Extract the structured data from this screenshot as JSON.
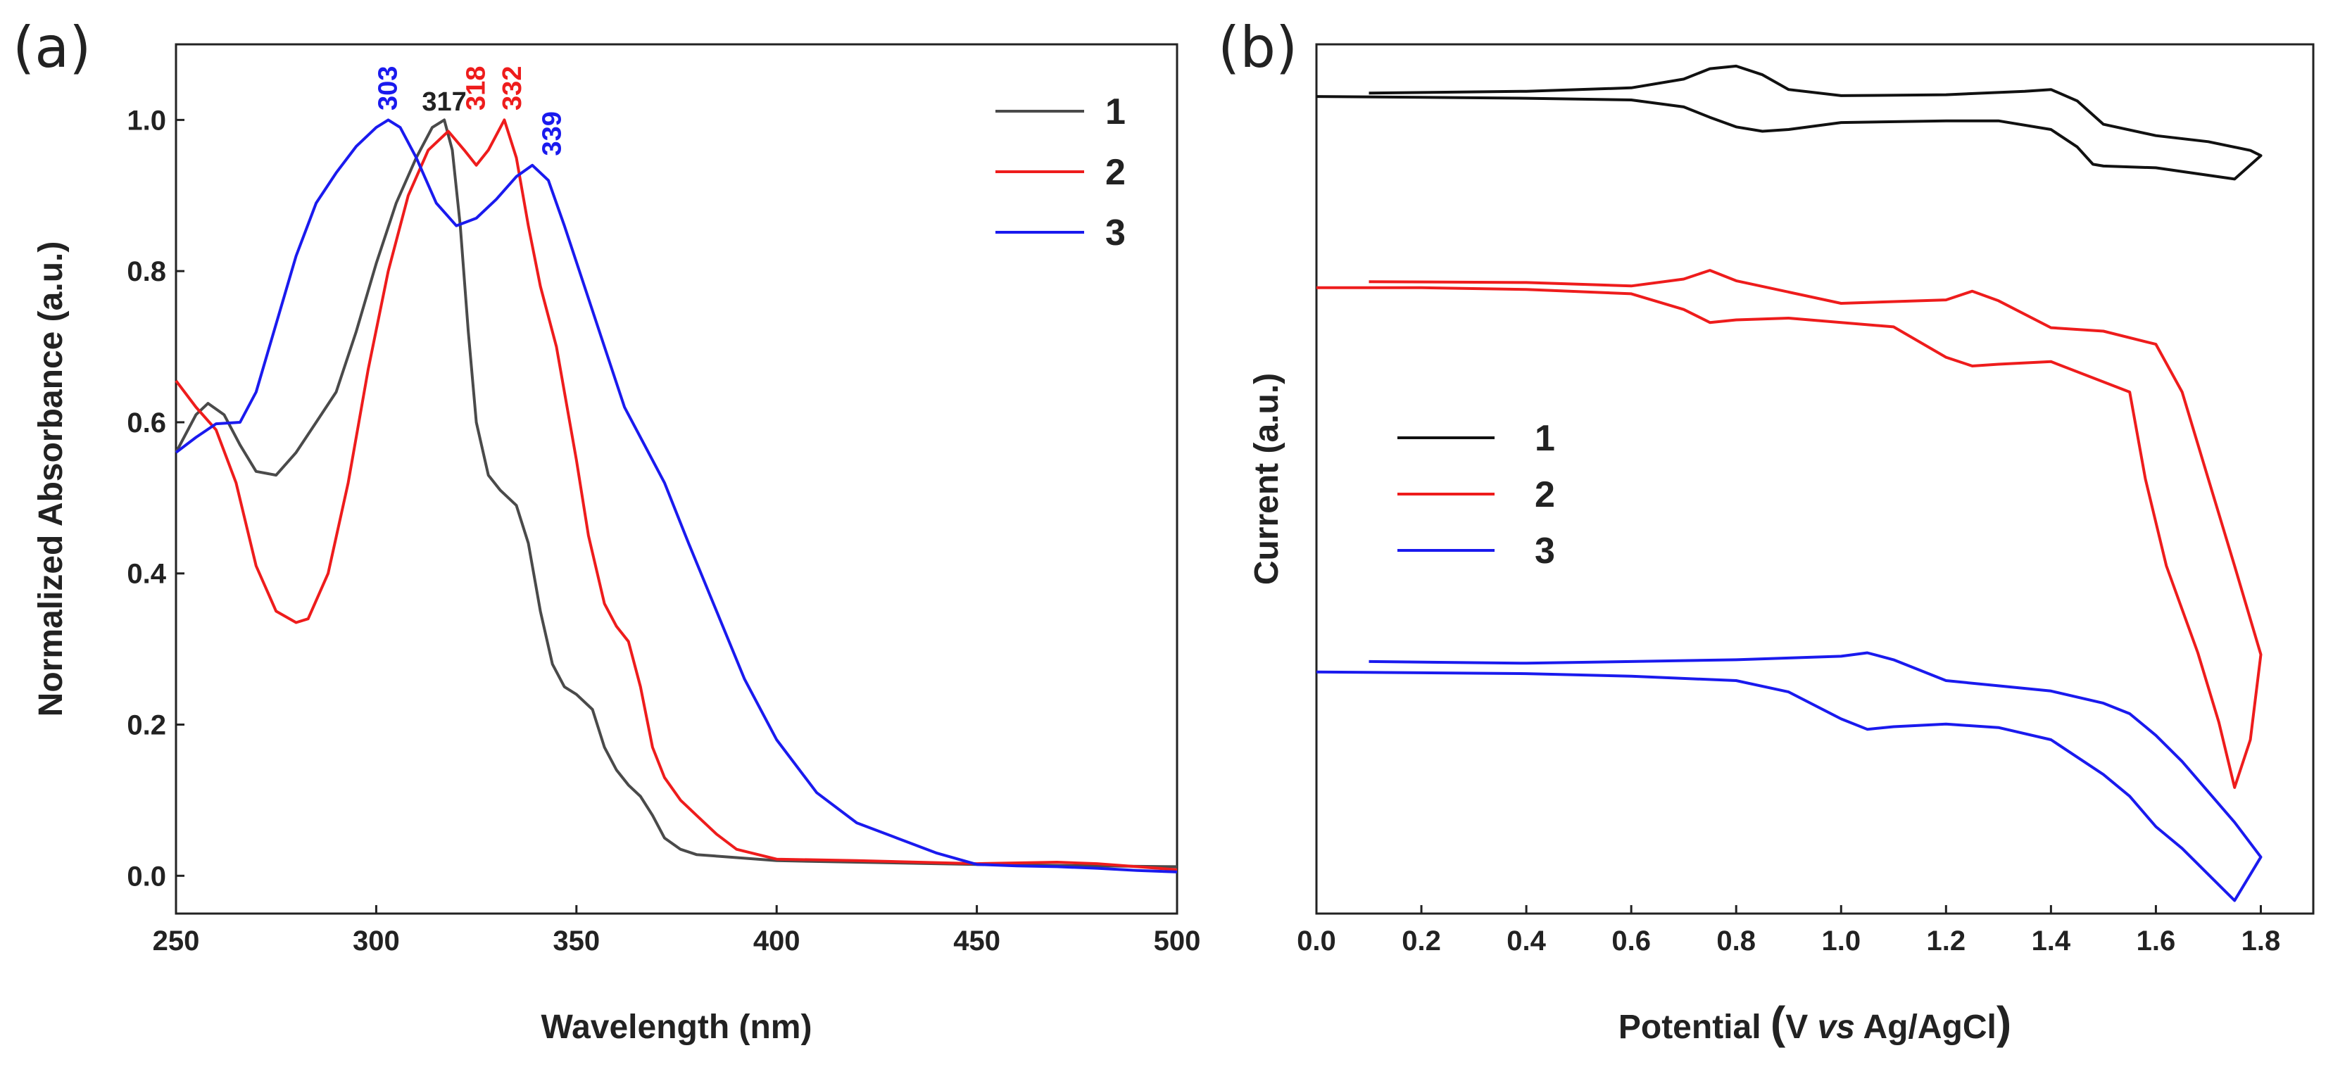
{
  "chart_data": [
    {
      "type": "line",
      "panel_label": "(a)",
      "title": "",
      "xlabel": "Wavelength (nm)",
      "ylabel": "Normalized Absorbance (a.u.)",
      "xlim": [
        250,
        500
      ],
      "ylim": [
        -0.05,
        1.1
      ],
      "xticks": [
        250,
        300,
        350,
        400,
        450,
        500
      ],
      "yticks": [
        0.0,
        0.2,
        0.4,
        0.6,
        0.8,
        1.0
      ],
      "xtick_labels": [
        "250",
        "300",
        "350",
        "400",
        "450",
        "500"
      ],
      "ytick_labels": [
        "0.0",
        "0.2",
        "0.4",
        "0.6",
        "0.8",
        "1.0"
      ],
      "legend_position": "top-right",
      "series": [
        {
          "name": "1",
          "color": "#4a4a4a",
          "x": [
            250,
            255,
            258,
            262,
            266,
            270,
            275,
            280,
            285,
            290,
            295,
            300,
            305,
            310,
            314,
            317,
            319,
            321,
            323,
            325,
            328,
            331,
            335,
            338,
            341,
            344,
            347,
            350,
            354,
            357,
            360,
            363,
            366,
            369,
            372,
            376,
            380,
            390,
            400,
            420,
            450,
            480,
            500
          ],
          "y": [
            0.56,
            0.61,
            0.625,
            0.61,
            0.57,
            0.535,
            0.53,
            0.56,
            0.6,
            0.64,
            0.72,
            0.81,
            0.89,
            0.95,
            0.99,
            1.0,
            0.96,
            0.86,
            0.72,
            0.6,
            0.53,
            0.51,
            0.49,
            0.44,
            0.35,
            0.28,
            0.25,
            0.24,
            0.22,
            0.17,
            0.14,
            0.12,
            0.105,
            0.08,
            0.05,
            0.035,
            0.028,
            0.024,
            0.02,
            0.018,
            0.015,
            0.013,
            0.012
          ]
        },
        {
          "name": "2",
          "color": "#ee1c1c",
          "x": [
            250,
            255,
            260,
            265,
            270,
            275,
            280,
            283,
            288,
            293,
            298,
            303,
            308,
            313,
            318,
            322,
            325,
            328,
            332,
            335,
            338,
            341,
            345,
            350,
            353,
            357,
            360,
            363,
            366,
            369,
            372,
            376,
            380,
            385,
            390,
            400,
            420,
            450,
            470,
            480,
            490,
            500
          ],
          "y": [
            0.655,
            0.62,
            0.59,
            0.52,
            0.41,
            0.35,
            0.335,
            0.34,
            0.4,
            0.52,
            0.67,
            0.8,
            0.9,
            0.96,
            0.985,
            0.96,
            0.94,
            0.96,
            1.0,
            0.95,
            0.86,
            0.78,
            0.7,
            0.55,
            0.45,
            0.36,
            0.33,
            0.31,
            0.25,
            0.17,
            0.13,
            0.1,
            0.08,
            0.055,
            0.035,
            0.022,
            0.02,
            0.016,
            0.018,
            0.016,
            0.012,
            0.008
          ]
        },
        {
          "name": "3",
          "color": "#1a1aee",
          "x": [
            250,
            255,
            260,
            266,
            270,
            275,
            280,
            285,
            290,
            295,
            300,
            303,
            306,
            310,
            315,
            320,
            325,
            330,
            335,
            339,
            343,
            347,
            352,
            357,
            362,
            367,
            372,
            378,
            385,
            392,
            400,
            410,
            420,
            430,
            440,
            450,
            460,
            470,
            480,
            490,
            500
          ],
          "y": [
            0.56,
            0.58,
            0.598,
            0.6,
            0.64,
            0.73,
            0.82,
            0.89,
            0.93,
            0.965,
            0.99,
            1.0,
            0.99,
            0.95,
            0.89,
            0.86,
            0.87,
            0.895,
            0.925,
            0.94,
            0.92,
            0.86,
            0.78,
            0.7,
            0.62,
            0.57,
            0.52,
            0.44,
            0.35,
            0.26,
            0.18,
            0.11,
            0.07,
            0.05,
            0.03,
            0.015,
            0.013,
            0.012,
            0.01,
            0.007,
            0.005
          ]
        }
      ],
      "annotations": [
        {
          "text": "303",
          "x": 303,
          "y": 1.005,
          "color": "#1a1aee",
          "vertical": true
        },
        {
          "text": "317",
          "x": 317,
          "y": 1.005,
          "color": "#222222",
          "vertical": false
        },
        {
          "text": "318",
          "x": 325,
          "y": 1.005,
          "color": "#ee1c1c",
          "vertical": true
        },
        {
          "text": "332",
          "x": 334,
          "y": 1.005,
          "color": "#ee1c1c",
          "vertical": true
        },
        {
          "text": "339",
          "x": 344,
          "y": 0.945,
          "color": "#1a1aee",
          "vertical": true
        }
      ]
    },
    {
      "type": "line",
      "panel_label": "(b)",
      "title": "",
      "xlabel_parts": [
        "Potential ",
        "(",
        "V ",
        "vs",
        " Ag/AgCl",
        ")"
      ],
      "ylabel": "Current (a.u.)",
      "xlim": [
        0.0,
        1.9
      ],
      "ylim": [
        0,
        1
      ],
      "xticks": [
        0.0,
        0.2,
        0.4,
        0.6,
        0.8,
        1.0,
        1.2,
        1.4,
        1.6,
        1.8
      ],
      "xtick_labels": [
        "0.0",
        "0.2",
        "0.4",
        "0.6",
        "0.8",
        "1.0",
        "1.2",
        "1.4",
        "1.6",
        "1.8"
      ],
      "y_units": "arbitrary (no y tick labels)",
      "legend_position": "middle-left",
      "series": [
        {
          "name": "1",
          "color": "#111111",
          "x": [
            0.1,
            0.4,
            0.6,
            0.7,
            0.75,
            0.8,
            0.85,
            0.9,
            1.0,
            1.2,
            1.35,
            1.4,
            1.45,
            1.5,
            1.6,
            1.7,
            1.78,
            1.8,
            1.75,
            1.6,
            1.5,
            1.48,
            1.45,
            1.4,
            1.3,
            1.2,
            1.0,
            0.9,
            0.85,
            0.8,
            0.75,
            0.7,
            0.6,
            0.4,
            0.2,
            0.0
          ],
          "y": [
            0.944,
            0.946,
            0.95,
            0.96,
            0.972,
            0.975,
            0.965,
            0.948,
            0.941,
            0.942,
            0.946,
            0.948,
            0.935,
            0.908,
            0.895,
            0.888,
            0.878,
            0.872,
            0.845,
            0.858,
            0.86,
            0.862,
            0.882,
            0.902,
            0.912,
            0.912,
            0.91,
            0.902,
            0.9,
            0.905,
            0.916,
            0.928,
            0.936,
            0.938,
            0.939,
            0.94
          ]
        },
        {
          "name": "2",
          "color": "#ee1c1c",
          "x": [
            0.1,
            0.4,
            0.6,
            0.7,
            0.75,
            0.8,
            1.0,
            1.2,
            1.25,
            1.3,
            1.4,
            1.5,
            1.6,
            1.65,
            1.7,
            1.75,
            1.8,
            1.78,
            1.75,
            1.72,
            1.68,
            1.62,
            1.58,
            1.55,
            1.4,
            1.3,
            1.25,
            1.2,
            1.1,
            0.9,
            0.8,
            0.75,
            0.7,
            0.6,
            0.4,
            0.2,
            0.0
          ],
          "y": [
            0.727,
            0.726,
            0.722,
            0.73,
            0.74,
            0.728,
            0.702,
            0.706,
            0.716,
            0.705,
            0.674,
            0.67,
            0.655,
            0.6,
            0.5,
            0.4,
            0.298,
            0.2,
            0.145,
            0.22,
            0.3,
            0.4,
            0.5,
            0.6,
            0.635,
            0.632,
            0.63,
            0.64,
            0.675,
            0.685,
            0.683,
            0.68,
            0.695,
            0.713,
            0.718,
            0.72,
            0.72
          ]
        },
        {
          "name": "3",
          "color": "#1a1aee",
          "x": [
            0.1,
            0.4,
            0.6,
            0.8,
            0.9,
            1.0,
            1.05,
            1.1,
            1.2,
            1.3,
            1.4,
            1.5,
            1.55,
            1.6,
            1.65,
            1.7,
            1.75,
            1.8,
            1.75,
            1.7,
            1.65,
            1.6,
            1.55,
            1.5,
            1.4,
            1.3,
            1.2,
            1.1,
            1.05,
            1.0,
            0.9,
            0.8,
            0.6,
            0.4,
            0.2,
            0.0
          ],
          "y": [
            0.29,
            0.288,
            0.29,
            0.292,
            0.294,
            0.296,
            0.3,
            0.292,
            0.268,
            0.262,
            0.256,
            0.242,
            0.23,
            0.205,
            0.175,
            0.14,
            0.105,
            0.065,
            0.015,
            0.045,
            0.075,
            0.1,
            0.135,
            0.16,
            0.2,
            0.214,
            0.218,
            0.215,
            0.212,
            0.224,
            0.255,
            0.268,
            0.273,
            0.276,
            0.277,
            0.278
          ]
        }
      ]
    }
  ]
}
